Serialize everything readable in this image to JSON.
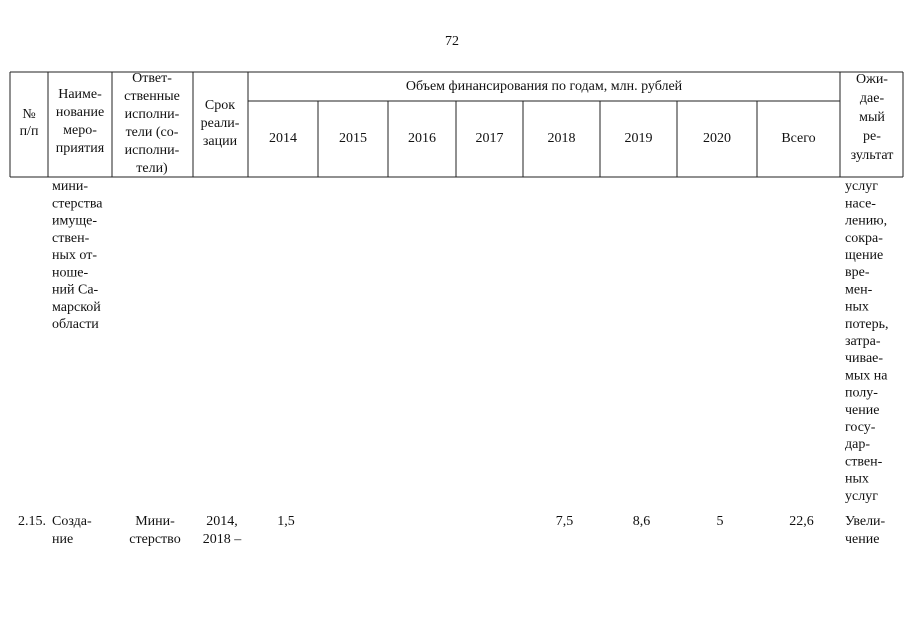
{
  "page_number": "72",
  "header": {
    "num": [
      "№",
      "п/п"
    ],
    "name": [
      "Наиме-",
      "нование",
      "меро-",
      "приятия"
    ],
    "responsible": [
      "Ответ-",
      "ственные",
      "исполни-",
      "тели (со-",
      "исполни-",
      "тели)"
    ],
    "term": [
      "Срок",
      "реали-",
      "зации"
    ],
    "financing": "Объем финансирования по годам, млн. рублей",
    "years": [
      "2014",
      "2015",
      "2016",
      "2017",
      "2018",
      "2019",
      "2020",
      "Всего"
    ],
    "result": [
      "Ожи-",
      "дае-",
      "мый",
      "ре-",
      "зультат"
    ]
  },
  "rows": [
    {
      "name": [
        "мини-",
        "стерства",
        "имуще-",
        "ствен-",
        "ных от-",
        "ноше-",
        "ний Са-",
        "марской",
        "области"
      ],
      "result": [
        "услуг",
        "насе-",
        "лению,",
        "сокра-",
        "щение",
        "вре-",
        "мен-",
        "ных",
        "потерь,",
        "затра-",
        "чивае-",
        "мых на",
        "полу-",
        "чение",
        "госу-",
        "дар-",
        "ствен-",
        "ных",
        "услуг"
      ]
    },
    {
      "num": "2.15.",
      "name": [
        "Созда-",
        "ние"
      ],
      "responsible": [
        "Мини-",
        "стерство"
      ],
      "term": [
        "2014,",
        "2018 –"
      ],
      "values": [
        "1,5",
        null,
        null,
        null,
        "7,5",
        "8,6",
        "5",
        "22,6"
      ],
      "result": [
        "Увели-",
        "чение"
      ]
    }
  ]
}
